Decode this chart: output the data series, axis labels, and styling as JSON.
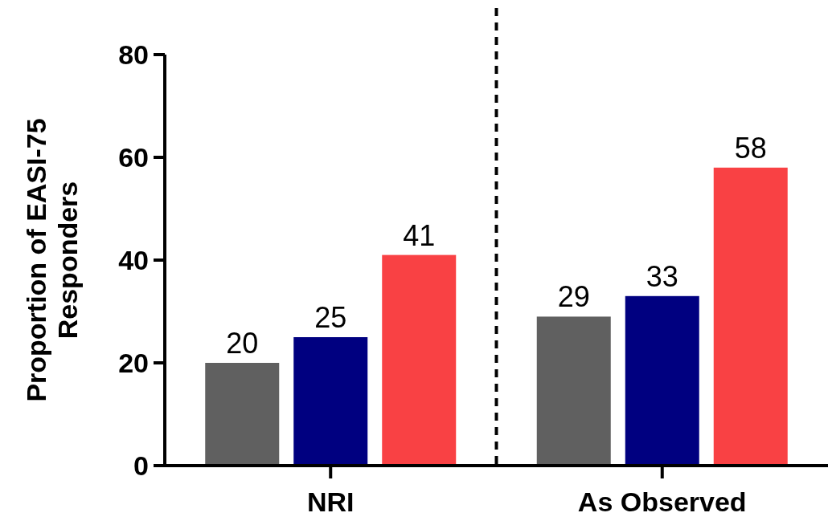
{
  "chart_data": {
    "type": "bar",
    "ylabel": "Proportion of EASI-75 Responders",
    "categories": [
      "NRI",
      "As Observed"
    ],
    "series": [
      {
        "color": "#606060",
        "values": [
          20,
          29
        ]
      },
      {
        "color": "#000080",
        "values": [
          25,
          33
        ]
      },
      {
        "color": "#f94144",
        "values": [
          41,
          58
        ]
      }
    ],
    "ylim": [
      0,
      80
    ],
    "yticks": [
      0,
      20,
      40,
      60,
      80
    ],
    "data_labels": true,
    "grid": false
  }
}
